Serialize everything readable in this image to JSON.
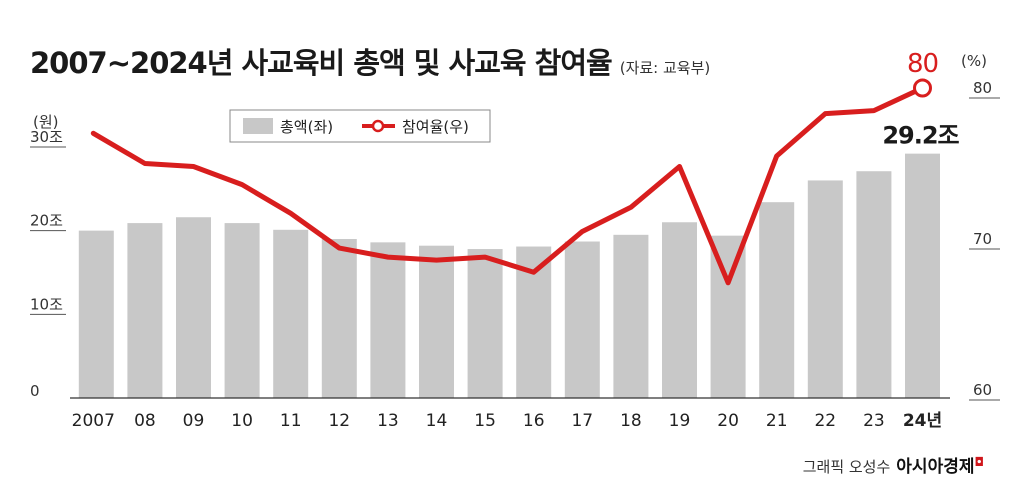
{
  "title": "2007~2024년 사교육비 총액 및 사교육 참여율",
  "source": "(자료: 교육부)",
  "credit": "그래픽 오성수",
  "brand": "아시아경제",
  "chart_data": {
    "type": "bar+line",
    "categories": [
      "2007",
      "08",
      "09",
      "10",
      "11",
      "12",
      "13",
      "14",
      "15",
      "16",
      "17",
      "18",
      "19",
      "20",
      "21",
      "22",
      "23",
      "24년"
    ],
    "series": [
      {
        "name": "총액(좌)",
        "type": "bar",
        "axis": "left",
        "values": [
          20.0,
          20.9,
          21.6,
          20.9,
          20.1,
          19.0,
          18.6,
          18.2,
          17.8,
          18.1,
          18.7,
          19.5,
          21.0,
          19.4,
          23.4,
          26.0,
          27.1,
          29.2
        ]
      },
      {
        "name": "참여율(우)",
        "type": "line",
        "axis": "right",
        "values": [
          77.0,
          75.0,
          74.8,
          73.6,
          71.7,
          69.4,
          68.8,
          68.6,
          68.8,
          67.8,
          70.5,
          72.1,
          74.8,
          67.1,
          75.5,
          78.3,
          78.5,
          80.0
        ]
      }
    ],
    "left_axis": {
      "unit": "(원)",
      "ticks": [
        {
          "v": 0,
          "label": "0"
        },
        {
          "v": 10,
          "label": "10조"
        },
        {
          "v": 20,
          "label": "20조"
        },
        {
          "v": 30,
          "label": "30조"
        }
      ],
      "range": [
        0,
        38
      ]
    },
    "right_axis": {
      "unit": "(%)",
      "ticks": [
        {
          "v": 60,
          "label": "60"
        },
        {
          "v": 70,
          "label": "70"
        },
        {
          "v": 80,
          "label": "80"
        }
      ],
      "range": [
        60,
        80
      ]
    },
    "annotations": {
      "last_bar_label": "29.2조",
      "last_point_label": "80"
    },
    "legend": {
      "position": "top-left"
    },
    "colors": {
      "bar": "#c8c8c8",
      "line": "#d81e1e",
      "axis": "#333333"
    },
    "grid": false
  }
}
